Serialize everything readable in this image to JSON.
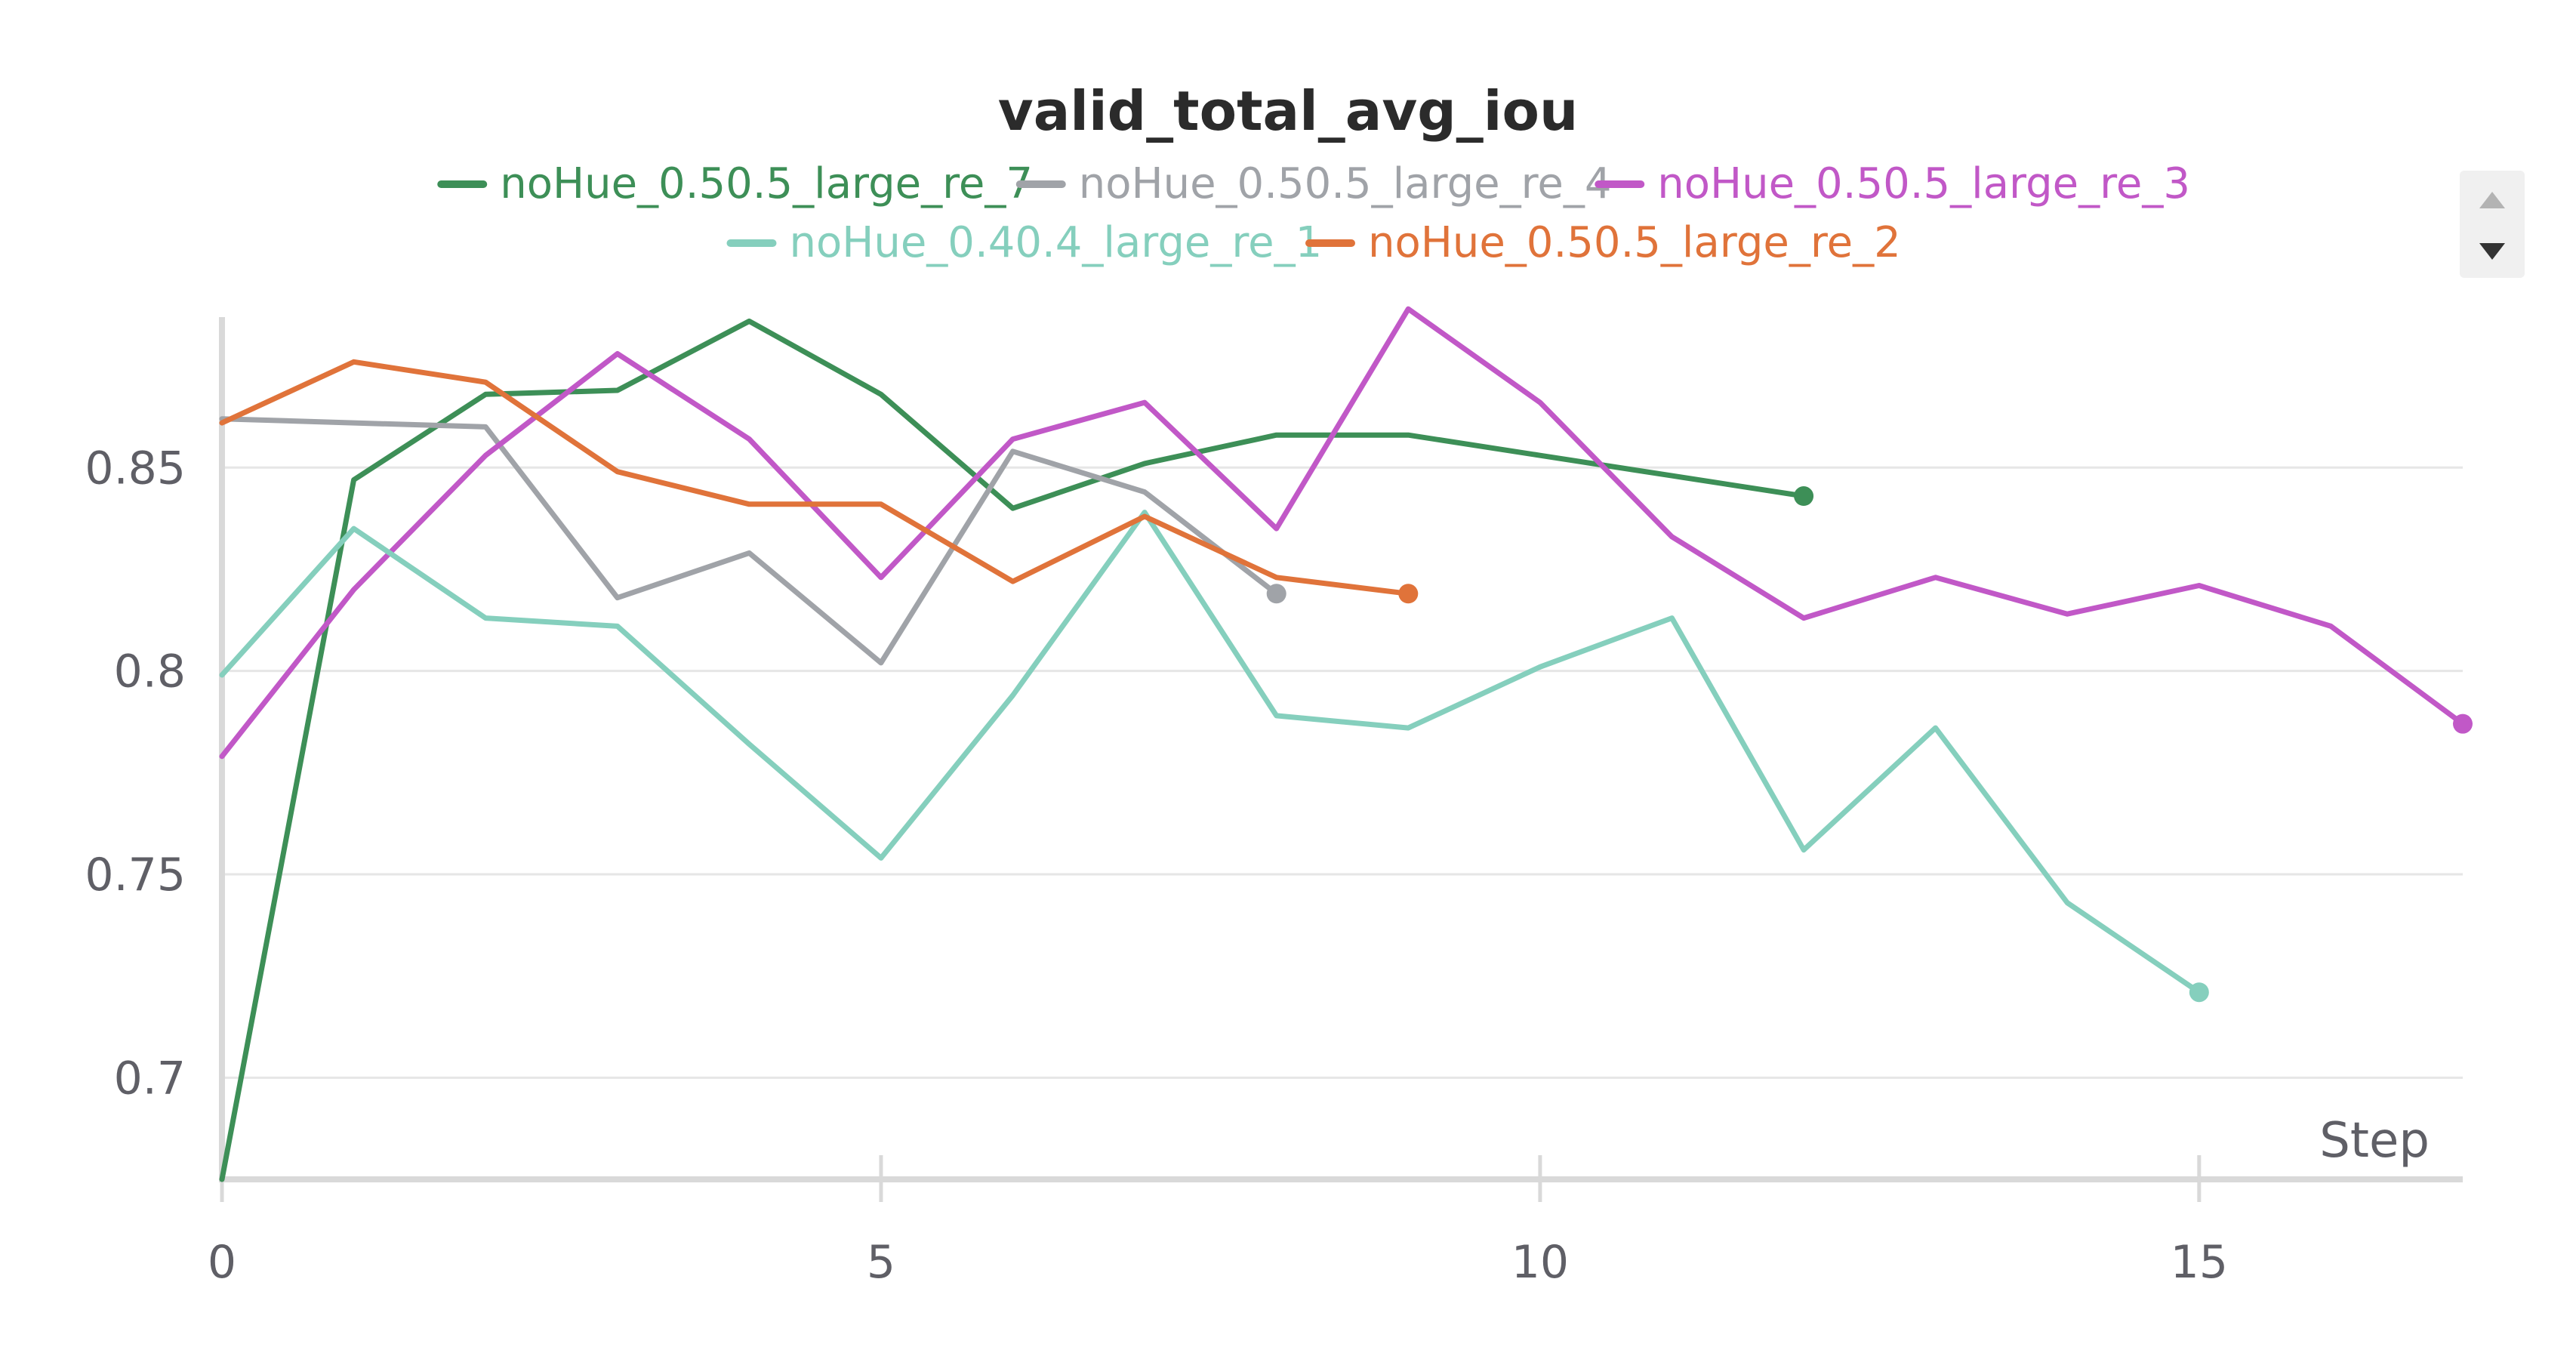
{
  "chart_data": {
    "type": "line",
    "title": "valid_total_avg_iou",
    "xlabel": "Step",
    "ylabel": "",
    "xlim": [
      0,
      17
    ],
    "ylim": [
      0.675,
      0.887
    ],
    "xticks": [
      0,
      5,
      10,
      15
    ],
    "xtick_labels": [
      "0",
      "5",
      "10",
      "15"
    ],
    "yticks": [
      0.7,
      0.75,
      0.8,
      0.85
    ],
    "ytick_labels": [
      "0.7",
      "0.75",
      "0.8",
      "0.85"
    ],
    "grid": true,
    "legend_position": "top",
    "series": [
      {
        "name": "noHue_0.50.5_large_re_7",
        "color": "#3d8f57",
        "x": [
          0,
          1,
          2,
          3,
          4,
          5,
          6,
          7,
          8,
          9,
          10,
          11,
          12
        ],
        "y": [
          0.675,
          0.847,
          0.868,
          0.869,
          0.886,
          0.868,
          0.84,
          0.851,
          0.858,
          0.858,
          0.853,
          0.848,
          0.843
        ]
      },
      {
        "name": "noHue_0.50.5_large_re_4",
        "color": "#a0a3a8",
        "x": [
          0,
          1,
          2,
          3,
          4,
          5,
          6,
          7,
          8
        ],
        "y": [
          0.862,
          0.861,
          0.86,
          0.818,
          0.829,
          0.802,
          0.854,
          0.844,
          0.819
        ]
      },
      {
        "name": "noHue_0.50.5_large_re_3",
        "color": "#c158c7",
        "x": [
          0,
          1,
          2,
          3,
          4,
          5,
          6,
          7,
          8,
          9,
          10,
          11,
          12,
          13,
          14,
          15,
          16,
          17
        ],
        "y": [
          0.779,
          0.82,
          0.853,
          0.878,
          0.857,
          0.823,
          0.857,
          0.866,
          0.835,
          0.889,
          0.866,
          0.833,
          0.813,
          0.823,
          0.814,
          0.821,
          0.811,
          0.787
        ]
      },
      {
        "name": "noHue_0.40.4_large_re_1",
        "color": "#85cfbd",
        "x": [
          0,
          1,
          2,
          3,
          4,
          5,
          6,
          7,
          8,
          9,
          10,
          11,
          12,
          13,
          14,
          15
        ],
        "y": [
          0.799,
          0.835,
          0.813,
          0.811,
          0.782,
          0.754,
          0.794,
          0.839,
          0.789,
          0.786,
          0.801,
          0.813,
          0.756,
          0.786,
          0.743,
          0.721
        ]
      },
      {
        "name": "noHue_0.50.5_large_re_2",
        "color": "#e0733a",
        "x": [
          0,
          1,
          2,
          3,
          4,
          5,
          6,
          7,
          8,
          9
        ],
        "y": [
          0.861,
          0.876,
          0.871,
          0.849,
          0.841,
          0.841,
          0.822,
          0.838,
          0.823,
          0.819
        ]
      }
    ]
  }
}
